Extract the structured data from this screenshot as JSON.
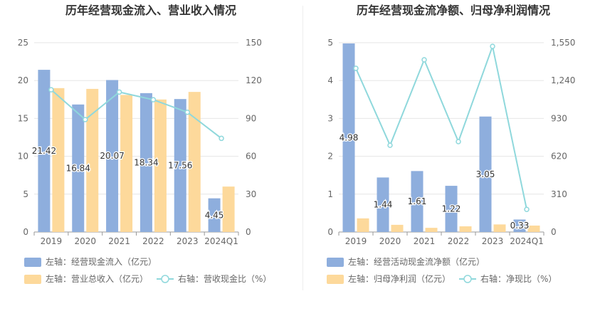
{
  "chart_data": [
    {
      "type": "bar",
      "title": "历年经营现金流入、营业收入情况",
      "categories": [
        "2019",
        "2020",
        "2021",
        "2022",
        "2023",
        "2024Q1"
      ],
      "left_axis": {
        "ylim": [
          0,
          25
        ],
        "ticks": [
          "0",
          "5",
          "10",
          "15",
          "20",
          "25"
        ]
      },
      "right_axis": {
        "ylim": [
          0,
          150
        ],
        "ticks": [
          "0",
          "30",
          "60",
          "90",
          "120",
          "150"
        ]
      },
      "series": [
        {
          "name": "左轴：经营现金流入（亿元）",
          "kind": "bar",
          "axis": "left",
          "color": "#8eaedd",
          "values": [
            21.42,
            16.84,
            20.07,
            18.34,
            17.56,
            4.45
          ],
          "labels": [
            "21.42",
            "16.84",
            "20.07",
            "18.34",
            "17.56",
            "4.45"
          ]
        },
        {
          "name": "左轴：营业总收入（亿元）",
          "kind": "bar",
          "axis": "left",
          "color": "#fdd99b",
          "values": [
            19.0,
            18.9,
            18.1,
            17.5,
            18.5,
            6.0
          ]
        },
        {
          "name": "右轴：营收现金比（%）",
          "kind": "line",
          "axis": "right",
          "color": "#8fd8dc",
          "values": [
            112.7,
            89.1,
            110.9,
            104.8,
            94.9,
            74.2
          ]
        }
      ],
      "legend_placement": "bottom",
      "grid": true
    },
    {
      "type": "bar",
      "title": "历年经营现金流净额、归母净利润情况",
      "categories": [
        "2019",
        "2020",
        "2021",
        "2022",
        "2023",
        "2024Q1"
      ],
      "left_axis": {
        "ylim": [
          0,
          5
        ],
        "ticks": [
          "0",
          "1",
          "2",
          "3",
          "4",
          "5"
        ]
      },
      "right_axis": {
        "ylim": [
          0,
          1550
        ],
        "ticks": [
          "0",
          "310",
          "620",
          "930",
          "1,240",
          "1,550"
        ]
      },
      "series": [
        {
          "name": "左轴：经营活动现金流净额（亿元）",
          "kind": "bar",
          "axis": "left",
          "color": "#8eaedd",
          "values": [
            4.98,
            1.44,
            1.61,
            1.22,
            3.05,
            0.33
          ],
          "labels": [
            "4.98",
            "1.44",
            "1.61",
            "1.22",
            "3.05",
            "0.33"
          ]
        },
        {
          "name": "左轴：归母净利润（亿元）",
          "kind": "bar",
          "axis": "left",
          "color": "#fdd99b",
          "values": [
            0.36,
            0.19,
            0.11,
            0.15,
            0.2,
            0.17
          ]
        },
        {
          "name": "右轴：净现比（%）",
          "kind": "line",
          "axis": "right",
          "color": "#8fd8dc",
          "values": [
            1340,
            710,
            1410,
            740,
            1520,
            185
          ]
        }
      ],
      "legend_placement": "bottom",
      "grid": true
    }
  ]
}
